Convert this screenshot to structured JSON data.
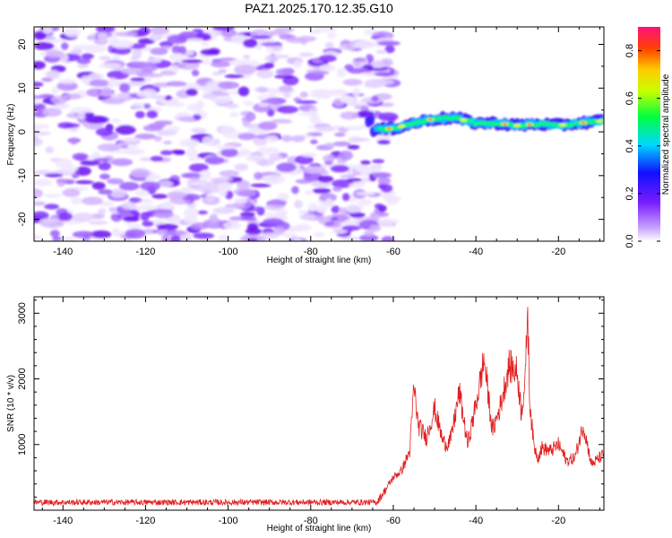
{
  "figure": {
    "title": "PAZ1.2025.170.12.35.G10"
  },
  "chart_data": [
    {
      "type": "heatmap",
      "name": "spectrogram",
      "xlabel": "Height of straight line (km)",
      "ylabel": "Frequency (Hz)",
      "xlim": [
        -147,
        -9
      ],
      "ylim": [
        -25,
        24
      ],
      "xticks": [
        -140,
        -120,
        -100,
        -80,
        -60,
        -40,
        -20
      ],
      "yticks": [
        -20,
        -10,
        0,
        10,
        20
      ],
      "colorbar": {
        "label": "Normalized spectral amplitude",
        "range": [
          0.0,
          0.9
        ],
        "ticks": [
          0.0,
          0.2,
          0.4,
          0.6,
          0.8
        ]
      },
      "signal_track": {
        "x": [
          -65,
          -60,
          -55,
          -50,
          -45,
          -40,
          -35,
          -30,
          -25,
          -20,
          -15,
          -10
        ],
        "frequency": [
          0.5,
          0.8,
          2.0,
          3.0,
          3.2,
          2.0,
          2.0,
          1.5,
          1.8,
          1.5,
          2.0,
          2.5
        ]
      },
      "noise_region_x": [
        -147,
        -62
      ]
    },
    {
      "type": "line",
      "name": "snr",
      "xlabel": "Height of straight line (km)",
      "ylabel": "SNR (10 * v/v)",
      "xlim": [
        -147,
        -9
      ],
      "ylim": [
        0,
        3250
      ],
      "xticks": [
        -140,
        -120,
        -100,
        -80,
        -60,
        -40,
        -20
      ],
      "yticks": [
        1000,
        2000,
        3000
      ],
      "color": "#e02020",
      "anchors": {
        "x": [
          -147,
          -64,
          -62,
          -60,
          -58,
          -56,
          -55,
          -54,
          -52,
          -50,
          -49,
          -48,
          -47,
          -46,
          -44,
          -42,
          -40,
          -38,
          -36,
          -34,
          -32,
          -30,
          -29,
          -28,
          -27.5,
          -27,
          -26,
          -25,
          -24,
          -22,
          -20,
          -18,
          -16,
          -14,
          -12,
          -10,
          -9
        ],
        "y": [
          120,
          120,
          300,
          500,
          600,
          900,
          1900,
          1300,
          1100,
          1550,
          1300,
          1050,
          1000,
          1100,
          1800,
          1000,
          1600,
          2300,
          1200,
          1600,
          2200,
          2100,
          1500,
          2000,
          3150,
          1700,
          1000,
          800,
          950,
          900,
          1000,
          750,
          800,
          1300,
          700,
          800,
          850
        ]
      }
    }
  ]
}
